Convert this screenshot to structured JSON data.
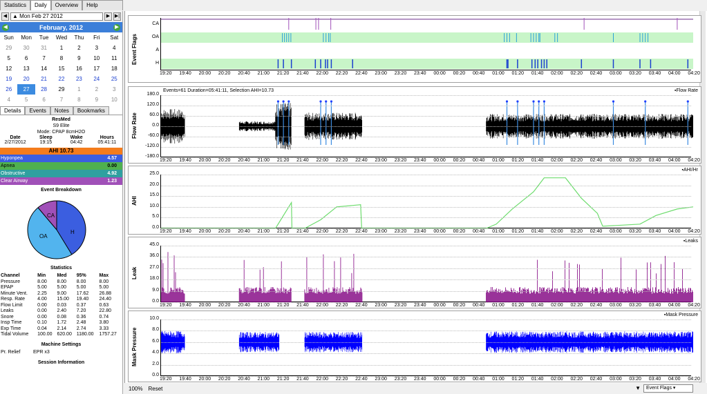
{
  "tabs": [
    "Statistics",
    "Daily",
    "Overview",
    "Help Browser"
  ],
  "date_label": "Mon Feb 27 2012",
  "calendar": {
    "month": "February,",
    "year": "2012",
    "days": [
      "Sun",
      "Mon",
      "Tue",
      "Wed",
      "Thu",
      "Fri",
      "Sat"
    ],
    "weeks": [
      [
        "29",
        "30",
        "31",
        "1",
        "2",
        "3",
        "4"
      ],
      [
        "5",
        "6",
        "7",
        "8",
        "9",
        "10",
        "11"
      ],
      [
        "12",
        "13",
        "14",
        "15",
        "16",
        "17",
        "18"
      ],
      [
        "19",
        "20",
        "21",
        "22",
        "23",
        "24",
        "25"
      ],
      [
        "26",
        "27",
        "28",
        "29",
        "1",
        "2",
        "3"
      ],
      [
        "4",
        "5",
        "6",
        "7",
        "8",
        "9",
        "10"
      ]
    ]
  },
  "subtabs": [
    "Details",
    "Events",
    "Notes",
    "Bookmarks"
  ],
  "machine": {
    "brand": "ResMed",
    "model": "S9 Elite",
    "mode": "Mode: CPAP 8cmH2O"
  },
  "session_cols": [
    "Date",
    "Sleep",
    "Wake",
    "Hours"
  ],
  "session_vals": [
    "2/27/2012",
    "19:15",
    "04:42",
    "05:41:11"
  ],
  "ahi_label": "AHI 10.73",
  "events": [
    {
      "name": "Hyponpea",
      "value": "4.57",
      "color": "#3b5ee0"
    },
    {
      "name": "Apnea",
      "value": "0.00",
      "color": "#4fb04f"
    },
    {
      "name": "Obstructive",
      "value": "4.92",
      "color": "#2fa0a0"
    },
    {
      "name": "Clear Airway",
      "value": "1.23",
      "color": "#a050b8"
    }
  ],
  "event_breakdown": "Event Breakdown",
  "pie_labels": [
    "CA",
    "OA",
    "H"
  ],
  "statistics_title": "Statistics",
  "stats_header": [
    "Channel",
    "Min",
    "Med",
    "95%",
    "Max"
  ],
  "stats_rows": [
    [
      "Pressure",
      "8.00",
      "8.00",
      "8.00",
      "8.00"
    ],
    [
      "EPAP",
      "5.00",
      "5.00",
      "5.00",
      "5.00"
    ],
    [
      "Minute Vent.",
      "2.25",
      "9.00",
      "17.62",
      "26.88"
    ],
    [
      "Resp. Rate",
      "4.00",
      "15.00",
      "19.40",
      "24.40"
    ],
    [
      "Flow Limit",
      "0.00",
      "0.03",
      "0.37",
      "0.63"
    ],
    [
      "Leaks",
      "0.00",
      "2.40",
      "7.20",
      "22.80"
    ],
    [
      "Snore",
      "0.00",
      "0.08",
      "0.36",
      "0.74"
    ],
    [
      "Insp Time",
      "0.10",
      "1.72",
      "2.48",
      "3.80"
    ],
    [
      "Exp Time",
      "0.04",
      "2.14",
      "2.74",
      "3.33"
    ],
    [
      "Tidal Volume",
      "100.00",
      "620.00",
      "1180.00",
      "1757.27"
    ]
  ],
  "machine_settings": "Machine Settings",
  "pr_relief_label": "Pr. Relief",
  "pr_relief_value": "EPR x3",
  "session_info": "Session Information",
  "time_ticks": [
    "19:20",
    "19:40",
    "20:00",
    "20:20",
    "20:40",
    "21:00",
    "21:20",
    "21:40",
    "22:00",
    "22:20",
    "22:40",
    "23:00",
    "23:20",
    "23:40",
    "00:00",
    "00:20",
    "00:40",
    "01:00",
    "01:20",
    "01:40",
    "02:00",
    "02:20",
    "02:40",
    "03:00",
    "03:20",
    "03:40",
    "04:00",
    "04:20"
  ],
  "event_flags": {
    "ylabel": "Event Flags",
    "rows": [
      "CA",
      "OA",
      "A",
      "H"
    ]
  },
  "flow": {
    "ylabel": "Flow Rate",
    "header": "Events=61 Duration=05:41:11, Selection AHI=10.73",
    "legend": "Flow Rate",
    "yticks": [
      "180.0",
      "120.0",
      "60.0",
      "0.0",
      "-60.0",
      "-120.0",
      "-180.0"
    ]
  },
  "ahi": {
    "ylabel": "AHI",
    "legend": "AHI/Hr",
    "yticks": [
      "25.0",
      "20.0",
      "15.0",
      "10.0",
      "5.0",
      "0.0"
    ]
  },
  "leak": {
    "ylabel": "Leak",
    "legend": "Leaks",
    "yticks": [
      "45.0",
      "36.0",
      "27.0",
      "18.0",
      "9.0",
      "0.0"
    ]
  },
  "mask": {
    "ylabel": "Mask Pressure",
    "legend": "Mask Pressure",
    "yticks": [
      "10.0",
      "8.0",
      "6.0",
      "4.0",
      "2.0",
      "0.0"
    ]
  },
  "zoom": "100%",
  "reset": "Reset",
  "event_flags_select": "Event Flags",
  "colors": {
    "ahi_bar": "#f47c1c",
    "cal_header": "#3c7fd9",
    "flag_bg": "#c8f5c8",
    "flow": "#000000",
    "ahi_line": "#6ddc6d",
    "leak": "#800080",
    "mask": "#0000ff"
  }
}
